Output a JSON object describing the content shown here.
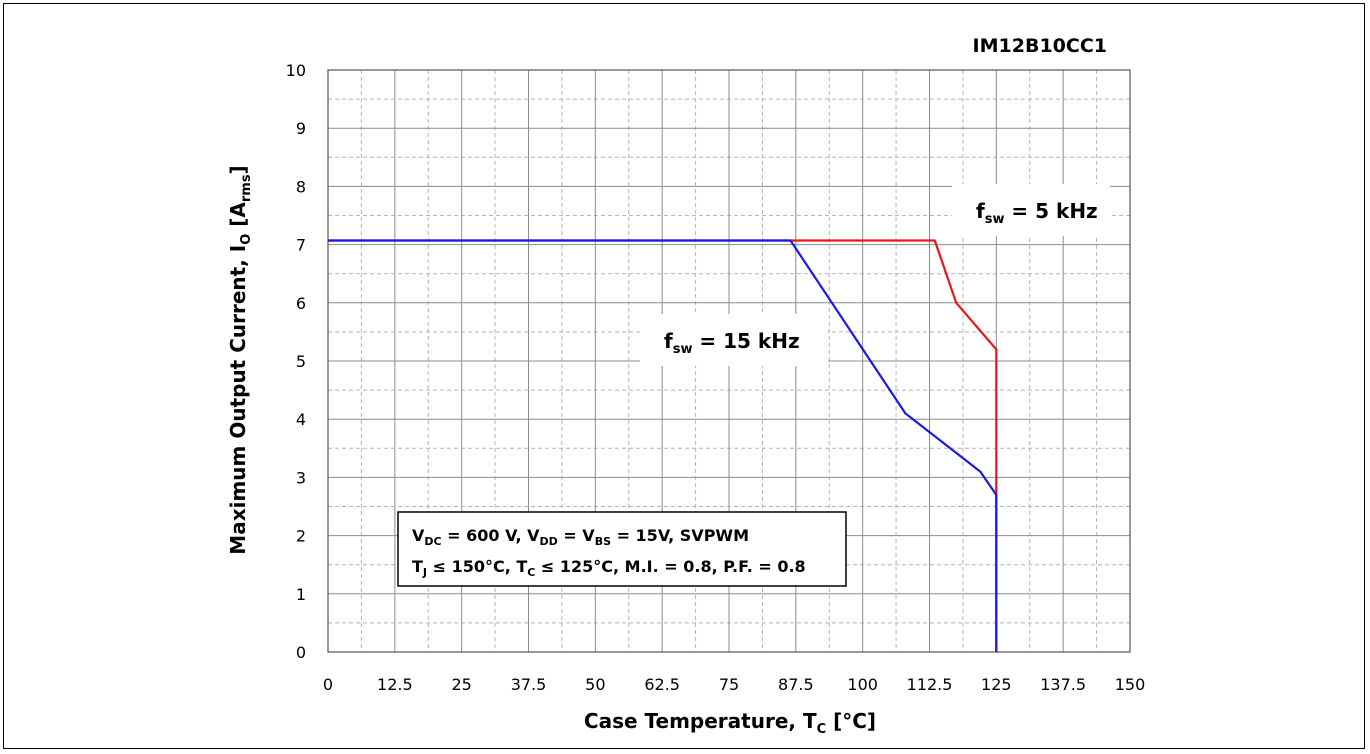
{
  "chart_data": {
    "type": "line",
    "title": "IM12B10CC1",
    "xlabel": {
      "main": "Case Temperature, T",
      "sub": "C",
      "unit": " [°C]"
    },
    "ylabel": {
      "main": "Maximum Output Current, I",
      "sub": "O",
      "unit_open": " [A",
      "unit_sub": "rms",
      "unit_close": "]"
    },
    "xlim": [
      0,
      150
    ],
    "ylim": [
      0,
      10
    ],
    "x_ticks": [
      "0",
      "12.5",
      "25",
      "37.5",
      "50",
      "62.5",
      "75",
      "87.5",
      "100",
      "112.5",
      "125",
      "137.5",
      "150"
    ],
    "y_ticks": [
      "0",
      "1",
      "2",
      "3",
      "4",
      "5",
      "6",
      "7",
      "8",
      "9",
      "10"
    ],
    "grid": true,
    "series": [
      {
        "name": "5 kHz",
        "label_prefix": "f",
        "label_sub": "sw",
        "label_eq": " =  ",
        "label_value": "5 kHz",
        "color": "#e8161b",
        "x": [
          0,
          113.5,
          117.5,
          125,
          125
        ],
        "y": [
          7.07,
          7.07,
          6.0,
          5.2,
          0
        ]
      },
      {
        "name": "15 kHz",
        "label_prefix": "f",
        "label_sub": "sw",
        "label_eq": " =  ",
        "label_value": "15 kHz",
        "color": "#1a1ae6",
        "x": [
          0,
          86.5,
          108,
          122,
          125,
          125
        ],
        "y": [
          7.07,
          7.07,
          4.1,
          3.1,
          2.7,
          0
        ]
      }
    ],
    "conditions": {
      "line1": [
        {
          "t": "V"
        },
        {
          "t": "DC",
          "sub": true
        },
        {
          "t": " = 600 V, V"
        },
        {
          "t": "DD",
          "sub": true
        },
        {
          "t": " =  V"
        },
        {
          "t": "BS",
          "sub": true
        },
        {
          "t": " = 15V, SVPWM"
        }
      ],
      "line2": [
        {
          "t": "T"
        },
        {
          "t": "J",
          "sub": true
        },
        {
          "t": " ≤ 150°C, T"
        },
        {
          "t": "C",
          "sub": true
        },
        {
          "t": " ≤ 125°C, M.I. = 0.8, P.F. = 0.8"
        }
      ]
    }
  }
}
